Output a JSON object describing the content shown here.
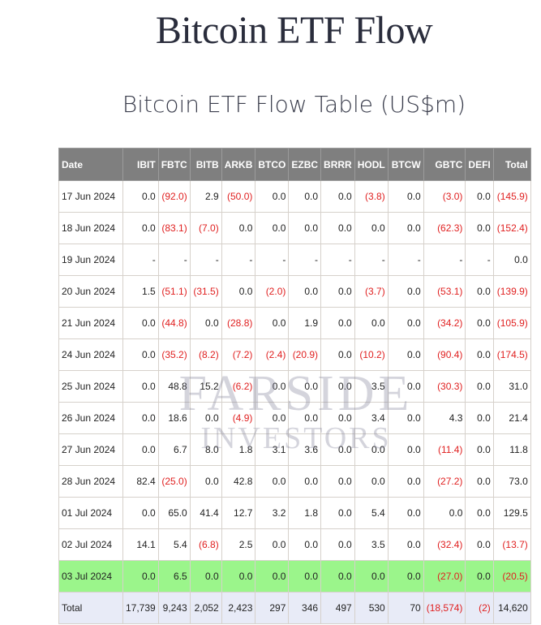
{
  "page_title": "Bitcoin ETF Flow",
  "table_title": "Bitcoin ETF Flow Table (US$m)",
  "columns": [
    "Date",
    "IBIT",
    "FBTC",
    "BITB",
    "ARKB",
    "BTCO",
    "EZBC",
    "BRRR",
    "HODL",
    "BTCW",
    "GBTC",
    "DEFI",
    "Total"
  ],
  "rows": [
    [
      "17 Jun 2024",
      "0.0",
      "(92.0)",
      "2.9",
      "(50.0)",
      "0.0",
      "0.0",
      "0.0",
      "(3.8)",
      "0.0",
      "(3.0)",
      "0.0",
      "(145.9)"
    ],
    [
      "18 Jun 2024",
      "0.0",
      "(83.1)",
      "(7.0)",
      "0.0",
      "0.0",
      "0.0",
      "0.0",
      "0.0",
      "0.0",
      "(62.3)",
      "0.0",
      "(152.4)"
    ],
    [
      "19 Jun 2024",
      "-",
      "-",
      "-",
      "-",
      "-",
      "-",
      "-",
      "-",
      "-",
      "-",
      "-",
      "0.0"
    ],
    [
      "20 Jun 2024",
      "1.5",
      "(51.1)",
      "(31.5)",
      "0.0",
      "(2.0)",
      "0.0",
      "0.0",
      "(3.7)",
      "0.0",
      "(53.1)",
      "0.0",
      "(139.9)"
    ],
    [
      "21 Jun 2024",
      "0.0",
      "(44.8)",
      "0.0",
      "(28.8)",
      "0.0",
      "1.9",
      "0.0",
      "0.0",
      "0.0",
      "(34.2)",
      "0.0",
      "(105.9)"
    ],
    [
      "24 Jun 2024",
      "0.0",
      "(35.2)",
      "(8.2)",
      "(7.2)",
      "(2.4)",
      "(20.9)",
      "0.0",
      "(10.2)",
      "0.0",
      "(90.4)",
      "0.0",
      "(174.5)"
    ],
    [
      "25 Jun 2024",
      "0.0",
      "48.8",
      "15.2",
      "(6.2)",
      "0.0",
      "0.0",
      "0.0",
      "3.5",
      "0.0",
      "(30.3)",
      "0.0",
      "31.0"
    ],
    [
      "26 Jun 2024",
      "0.0",
      "18.6",
      "0.0",
      "(4.9)",
      "0.0",
      "0.0",
      "0.0",
      "3.4",
      "0.0",
      "4.3",
      "0.0",
      "21.4"
    ],
    [
      "27 Jun 2024",
      "0.0",
      "6.7",
      "8.0",
      "1.8",
      "3.1",
      "3.6",
      "0.0",
      "0.0",
      "0.0",
      "(11.4)",
      "0.0",
      "11.8"
    ],
    [
      "28 Jun 2024",
      "82.4",
      "(25.0)",
      "0.0",
      "42.8",
      "0.0",
      "0.0",
      "0.0",
      "0.0",
      "0.0",
      "(27.2)",
      "0.0",
      "73.0"
    ],
    [
      "01 Jul 2024",
      "0.0",
      "65.0",
      "41.4",
      "12.7",
      "3.2",
      "1.8",
      "0.0",
      "5.4",
      "0.0",
      "0.0",
      "0.0",
      "129.5"
    ],
    [
      "02 Jul 2024",
      "14.1",
      "5.4",
      "(6.8)",
      "2.5",
      "0.0",
      "0.0",
      "0.0",
      "3.5",
      "0.0",
      "(32.4)",
      "0.0",
      "(13.7)"
    ],
    [
      "03 Jul 2024",
      "0.0",
      "6.5",
      "0.0",
      "0.0",
      "0.0",
      "0.0",
      "0.0",
      "0.0",
      "0.0",
      "(27.0)",
      "0.0",
      "(20.5)"
    ]
  ],
  "total_row": [
    "Total",
    "17,739",
    "9,243",
    "2,052",
    "2,423",
    "297",
    "346",
    "497",
    "530",
    "70",
    "(18,574)",
    "(2)",
    "14,620"
  ],
  "highlighted_row_index": 12,
  "watermark": {
    "line1": "FARSIDE",
    "line2": "INVESTORS"
  },
  "colors": {
    "header_bg": "#7f7f7f",
    "negative_text": "#e02020",
    "highlight_row_bg": "#9bf58b",
    "total_row_bg": "#e8ebf7"
  }
}
